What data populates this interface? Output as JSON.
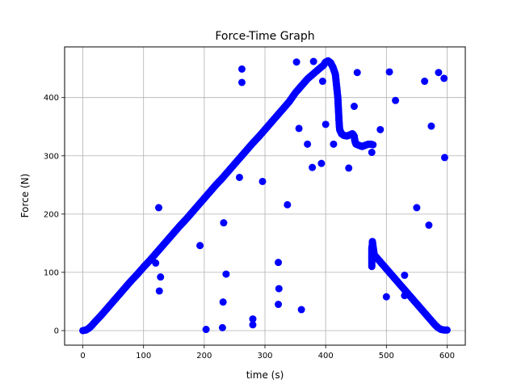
{
  "chart_data": {
    "type": "scatter",
    "title": "Force-Time Graph",
    "xlabel": "time (s)",
    "ylabel": "Force (N)",
    "xlim": [
      -30,
      630
    ],
    "ylim": [
      -25,
      487
    ],
    "xticks": [
      0,
      100,
      200,
      300,
      400,
      500,
      600
    ],
    "yticks": [
      0,
      100,
      200,
      300,
      400
    ],
    "grid": true,
    "legend": "none",
    "marker_color": "#0000ff",
    "main_curve": [
      [
        0,
        0
      ],
      [
        5,
        1
      ],
      [
        10,
        4
      ],
      [
        15,
        9
      ],
      [
        20,
        15
      ],
      [
        30,
        26
      ],
      [
        40,
        38
      ],
      [
        50,
        50
      ],
      [
        60,
        62
      ],
      [
        70,
        74
      ],
      [
        80,
        86
      ],
      [
        90,
        97
      ],
      [
        100,
        109
      ],
      [
        110,
        120
      ],
      [
        120,
        132
      ],
      [
        130,
        144
      ],
      [
        140,
        156
      ],
      [
        150,
        168
      ],
      [
        160,
        180
      ],
      [
        170,
        191
      ],
      [
        180,
        203
      ],
      [
        190,
        215
      ],
      [
        200,
        227
      ],
      [
        210,
        239
      ],
      [
        220,
        251
      ],
      [
        230,
        262
      ],
      [
        240,
        274
      ],
      [
        250,
        286
      ],
      [
        260,
        298
      ],
      [
        270,
        310
      ],
      [
        280,
        322
      ],
      [
        290,
        333
      ],
      [
        300,
        345
      ],
      [
        310,
        357
      ],
      [
        320,
        369
      ],
      [
        330,
        381
      ],
      [
        340,
        393
      ],
      [
        350,
        408
      ],
      [
        360,
        420
      ],
      [
        370,
        432
      ],
      [
        380,
        441
      ],
      [
        390,
        450
      ],
      [
        396,
        455
      ],
      [
        400,
        461
      ],
      [
        404,
        463
      ],
      [
        408,
        460
      ],
      [
        412,
        452
      ],
      [
        416,
        440
      ],
      [
        418,
        420
      ],
      [
        420,
        400
      ],
      [
        421,
        380
      ],
      [
        422,
        360
      ],
      [
        423,
        345
      ],
      [
        426,
        338
      ],
      [
        430,
        335
      ],
      [
        435,
        334
      ],
      [
        440,
        336
      ],
      [
        444,
        338
      ],
      [
        447,
        334
      ],
      [
        448,
        326
      ],
      [
        450,
        320
      ],
      [
        455,
        318
      ],
      [
        460,
        316
      ],
      [
        465,
        318
      ],
      [
        470,
        320
      ],
      [
        475,
        320
      ],
      [
        478,
        319
      ]
    ],
    "lower_curve": [
      [
        476,
        110
      ],
      [
        476,
        118
      ],
      [
        476,
        126
      ],
      [
        476,
        134
      ],
      [
        476,
        142
      ],
      [
        477,
        148
      ],
      [
        477,
        153
      ],
      [
        478,
        145
      ],
      [
        480,
        130
      ],
      [
        485,
        124
      ],
      [
        490,
        118
      ],
      [
        495,
        112
      ],
      [
        500,
        106
      ],
      [
        505,
        100
      ],
      [
        510,
        94
      ],
      [
        515,
        88
      ],
      [
        520,
        82
      ],
      [
        525,
        76
      ],
      [
        530,
        70
      ],
      [
        535,
        64
      ],
      [
        540,
        58
      ],
      [
        545,
        52
      ],
      [
        550,
        46
      ],
      [
        555,
        40
      ],
      [
        560,
        34
      ],
      [
        565,
        28
      ],
      [
        570,
        22
      ],
      [
        575,
        16
      ],
      [
        580,
        10
      ],
      [
        585,
        5
      ],
      [
        590,
        2
      ],
      [
        595,
        1
      ],
      [
        600,
        1
      ]
    ],
    "outliers": [
      [
        125,
        211
      ],
      [
        120,
        116
      ],
      [
        128,
        92
      ],
      [
        126,
        68
      ],
      [
        193,
        146
      ],
      [
        203,
        2
      ],
      [
        230,
        5
      ],
      [
        232,
        185
      ],
      [
        231,
        49
      ],
      [
        236,
        97
      ],
      [
        258,
        263
      ],
      [
        262,
        449
      ],
      [
        262,
        426
      ],
      [
        280,
        20
      ],
      [
        280,
        10
      ],
      [
        296,
        256
      ],
      [
        322,
        117
      ],
      [
        323,
        72
      ],
      [
        322,
        45
      ],
      [
        337,
        216
      ],
      [
        352,
        461
      ],
      [
        356,
        347
      ],
      [
        360,
        36
      ],
      [
        370,
        320
      ],
      [
        378,
        280
      ],
      [
        380,
        462
      ],
      [
        393,
        287
      ],
      [
        395,
        428
      ],
      [
        400,
        354
      ],
      [
        413,
        320
      ],
      [
        438,
        279
      ],
      [
        447,
        385
      ],
      [
        452,
        443
      ],
      [
        476,
        306
      ],
      [
        490,
        345
      ],
      [
        500,
        58
      ],
      [
        505,
        444
      ],
      [
        515,
        395
      ],
      [
        530,
        95
      ],
      [
        530,
        60
      ],
      [
        550,
        211
      ],
      [
        563,
        428
      ],
      [
        570,
        181
      ],
      [
        574,
        351
      ],
      [
        586,
        443
      ],
      [
        595,
        433
      ],
      [
        596,
        297
      ]
    ]
  }
}
